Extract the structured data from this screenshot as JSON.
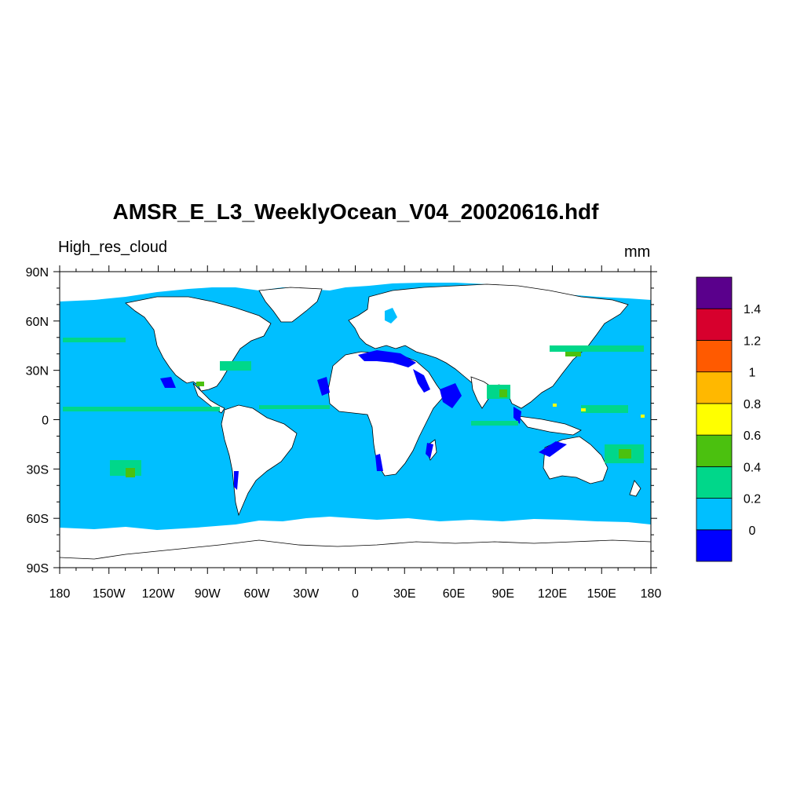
{
  "chart_data": {
    "type": "heatmap",
    "title": "AMSR_E_L3_WeeklyOcean_V04_20020616.hdf",
    "left_label": "High_res_cloud",
    "units": "mm",
    "projection": "cylindrical equidistant",
    "x_ticks": [
      "180",
      "150W",
      "120W",
      "90W",
      "60W",
      "30W",
      "0",
      "30E",
      "60E",
      "90E",
      "120E",
      "150E",
      "180"
    ],
    "y_ticks": [
      "90N",
      "60N",
      "30N",
      "0",
      "30S",
      "60S",
      "90S"
    ],
    "xlim": [
      -180,
      180
    ],
    "ylim": [
      -90,
      90
    ],
    "colorbar": {
      "levels": [
        "0",
        "0.2",
        "0.4",
        "0.6",
        "0.8",
        "1",
        "1.2",
        "1.4"
      ],
      "colors": [
        "#0000ff",
        "#00bfff",
        "#00d78a",
        "#4bc10f",
        "#ffff00",
        "#ffb800",
        "#ff5a00",
        "#d7002d",
        "#5a008c"
      ]
    },
    "land_color": "#ffffff",
    "dominant_ocean_color": "#00bfff"
  }
}
